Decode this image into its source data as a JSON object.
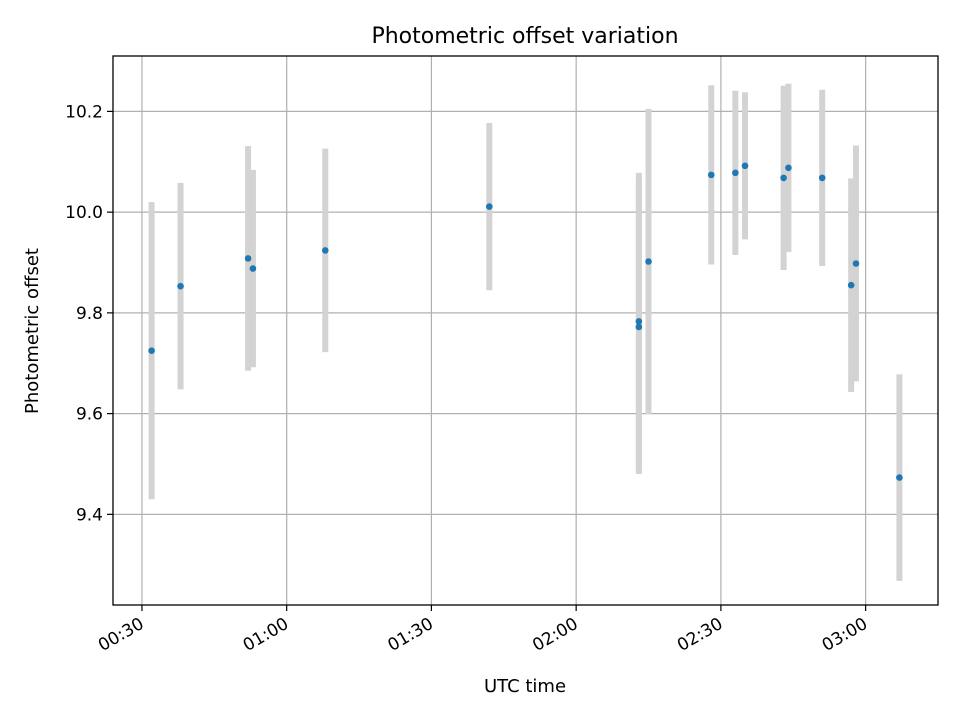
{
  "chart_data": {
    "type": "scatter",
    "title": "Photometric offset variation",
    "xlabel": "UTC time",
    "ylabel": "Photometric offset",
    "x_tick_labels": [
      "00:30",
      "01:00",
      "01:30",
      "02:00",
      "02:30",
      "03:00"
    ],
    "y_tick_labels": [
      "9.4",
      "9.6",
      "9.8",
      "10.0",
      "10.2"
    ],
    "xlim": [
      "00:24",
      "03:15"
    ],
    "ylim": [
      9.22,
      10.31
    ],
    "grid": true,
    "colors": {
      "point": "#1f77b4",
      "errorbar": "#d3d3d3",
      "grid": "#b0b0b0"
    },
    "points": [
      {
        "time": "00:32",
        "y": 9.725,
        "err": 0.295
      },
      {
        "time": "00:38",
        "y": 9.853,
        "err": 0.205
      },
      {
        "time": "00:52",
        "y": 9.908,
        "err": 0.223
      },
      {
        "time": "00:53",
        "y": 9.888,
        "err": 0.196
      },
      {
        "time": "01:08",
        "y": 9.924,
        "err": 0.202
      },
      {
        "time": "01:42",
        "y": 10.011,
        "err": 0.166
      },
      {
        "time": "02:13",
        "y": 9.783,
        "err": 0.295
      },
      {
        "time": "02:13",
        "y": 9.772,
        "err": 0.292
      },
      {
        "time": "02:15",
        "y": 9.902,
        "err": 0.303
      },
      {
        "time": "02:28",
        "y": 10.074,
        "err": 0.178
      },
      {
        "time": "02:33",
        "y": 10.078,
        "err": 0.163
      },
      {
        "time": "02:35",
        "y": 10.092,
        "err": 0.146
      },
      {
        "time": "02:43",
        "y": 10.068,
        "err": 0.183
      },
      {
        "time": "02:44",
        "y": 10.088,
        "err": 0.167
      },
      {
        "time": "02:51",
        "y": 10.068,
        "err": 0.175
      },
      {
        "time": "02:57",
        "y": 9.855,
        "err": 0.212
      },
      {
        "time": "02:58",
        "y": 9.898,
        "err": 0.234
      },
      {
        "time": "03:07",
        "y": 9.473,
        "err": 0.205
      }
    ]
  }
}
